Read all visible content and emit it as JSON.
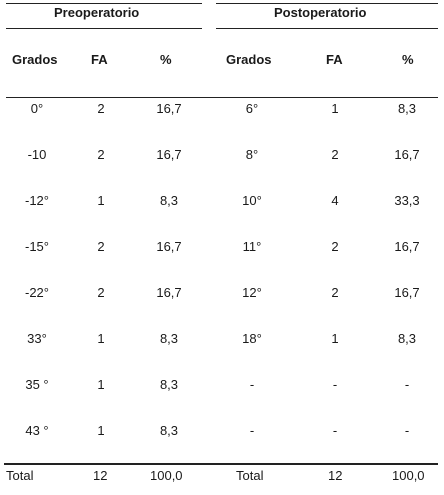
{
  "pre": {
    "title": "Preoperatorio",
    "headers": [
      "Grados",
      "FA",
      "%"
    ],
    "rows": [
      [
        "0°",
        "2",
        "16,7"
      ],
      [
        "-10",
        "2",
        "16,7"
      ],
      [
        "-12°",
        "1",
        "8,3"
      ],
      [
        "-15°",
        "2",
        "16,7"
      ],
      [
        "-22°",
        "2",
        "16,7"
      ],
      [
        "33°",
        "1",
        "8,3"
      ],
      [
        "35 °",
        "1",
        "8,3"
      ],
      [
        "43 °",
        "1",
        "8,3"
      ]
    ],
    "total": [
      "Total",
      "12",
      "100,0"
    ]
  },
  "post": {
    "title": "Postoperatorio",
    "headers": [
      "Grados",
      "FA",
      "%"
    ],
    "rows": [
      [
        "6°",
        "1",
        "8,3"
      ],
      [
        "8°",
        "2",
        "16,7"
      ],
      [
        "10°",
        "4",
        "33,3"
      ],
      [
        "11°",
        "2",
        "16,7"
      ],
      [
        "12°",
        "2",
        "16,7"
      ],
      [
        "18°",
        "1",
        "8,3"
      ],
      [
        "-",
        "-",
        "-"
      ],
      [
        "-",
        "-",
        "-"
      ]
    ],
    "total": [
      "Total",
      "12",
      "100,0"
    ]
  }
}
